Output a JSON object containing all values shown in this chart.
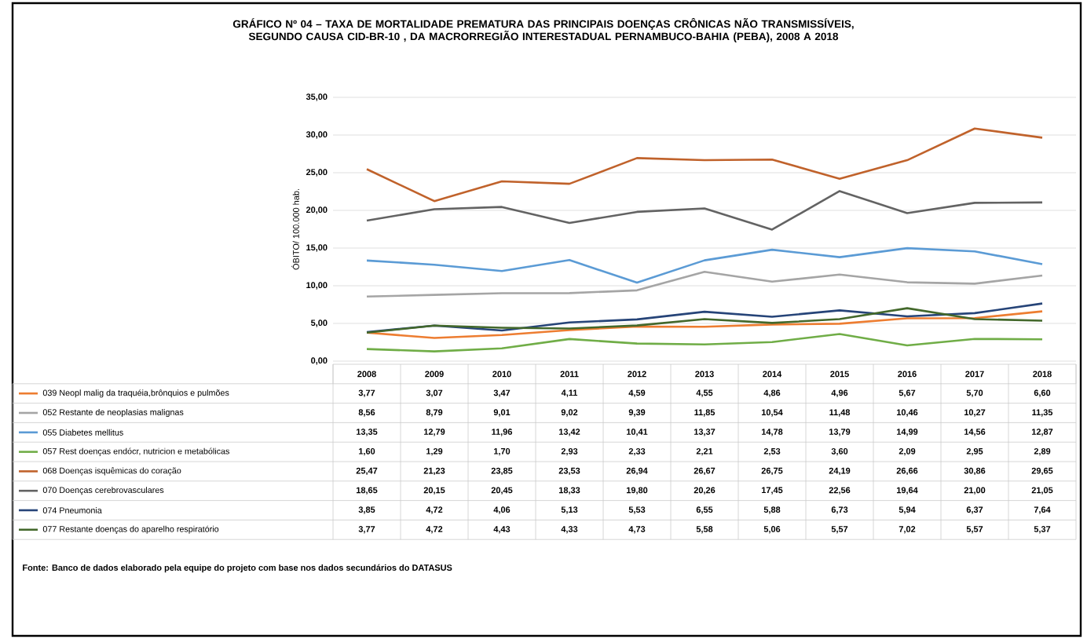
{
  "chart_data": {
    "type": "line",
    "title": "GRÁFICO Nº 04 – TAXA DE MORTALIDADE PREMATURA DAS PRINCIPAIS DOENÇAS CRÔNICAS NÃO TRANSMISSÍVEIS, SEGUNDO CAUSA CID-BR-10 , DA MACRORREGIÃO INTERESTADUAL PERNAMBUCO-BAHIA (PEBA), 2008 A 2018",
    "ylabel": "ÓBITO/ 100.000 hab.",
    "categories": [
      "2008",
      "2009",
      "2010",
      "2011",
      "2012",
      "2013",
      "2014",
      "2015",
      "2016",
      "2017",
      "2018"
    ],
    "ylim": [
      0,
      35
    ],
    "yticks": [
      {
        "value": 0,
        "label": "0,00"
      },
      {
        "value": 5,
        "label": "5,00"
      },
      {
        "value": 10,
        "label": "10,00"
      },
      {
        "value": 15,
        "label": "15,00"
      },
      {
        "value": 20,
        "label": "20,00"
      },
      {
        "value": 25,
        "label": "25,00"
      },
      {
        "value": 30,
        "label": "30,00"
      },
      {
        "value": 35,
        "label": "35,00"
      }
    ],
    "grid": "y",
    "legend": "bottom",
    "marker": "none",
    "line_style": "solid",
    "annotations": [
      "Fonte: Banco de dados elaborado pela equipe do projeto com base nos dados secundários do DATASUS"
    ],
    "series": [
      {
        "name": "039 Neopl malig da traquéia,brônquios e pulmões",
        "color": "#ed7d31",
        "values": [
          3.77,
          3.07,
          3.47,
          4.11,
          4.59,
          4.55,
          4.86,
          4.96,
          5.67,
          5.7,
          6.6
        ],
        "value_labels": [
          "3,77",
          "3,07",
          "3,47",
          "4,11",
          "4,59",
          "4,55",
          "4,86",
          "4,96",
          "5,67",
          "5,70",
          "6,60"
        ]
      },
      {
        "name": "052 Restante de neoplasias malignas",
        "color": "#a5a5a5",
        "values": [
          8.56,
          8.79,
          9.01,
          9.02,
          9.39,
          11.85,
          10.54,
          11.48,
          10.46,
          10.27,
          11.35
        ],
        "value_labels": [
          "8,56",
          "8,79",
          "9,01",
          "9,02",
          "9,39",
          "11,85",
          "10,54",
          "11,48",
          "10,46",
          "10,27",
          "11,35"
        ]
      },
      {
        "name": "055 Diabetes mellitus",
        "color": "#5b9bd5",
        "values": [
          13.35,
          12.79,
          11.96,
          13.42,
          10.41,
          13.37,
          14.78,
          13.79,
          14.99,
          14.56,
          12.87
        ],
        "value_labels": [
          "13,35",
          "12,79",
          "11,96",
          "13,42",
          "10,41",
          "13,37",
          "14,78",
          "13,79",
          "14,99",
          "14,56",
          "12,87"
        ]
      },
      {
        "name": "057 Rest doenças endócr, nutricion e metabólicas",
        "color": "#70ad47",
        "values": [
          1.6,
          1.29,
          1.7,
          2.93,
          2.33,
          2.21,
          2.53,
          3.6,
          2.09,
          2.95,
          2.89
        ],
        "value_labels": [
          "1,60",
          "1,29",
          "1,70",
          "2,93",
          "2,33",
          "2,21",
          "2,53",
          "3,60",
          "2,09",
          "2,95",
          "2,89"
        ]
      },
      {
        "name": "068 Doenças isquêmicas do coração",
        "color": "#c0622b",
        "values": [
          25.47,
          21.23,
          23.85,
          23.53,
          26.94,
          26.67,
          26.75,
          24.19,
          26.66,
          30.86,
          29.65
        ],
        "value_labels": [
          "25,47",
          "21,23",
          "23,85",
          "23,53",
          "26,94",
          "26,67",
          "26,75",
          "24,19",
          "26,66",
          "30,86",
          "29,65"
        ]
      },
      {
        "name": "070 Doenças cerebrovasculares",
        "color": "#636363",
        "values": [
          18.65,
          20.15,
          20.45,
          18.33,
          19.8,
          20.26,
          17.45,
          22.56,
          19.64,
          21.0,
          21.05
        ],
        "value_labels": [
          "18,65",
          "20,15",
          "20,45",
          "18,33",
          "19,80",
          "20,26",
          "17,45",
          "22,56",
          "19,64",
          "21,00",
          "21,05"
        ]
      },
      {
        "name": "074 Pneumonia",
        "color": "#264478",
        "values": [
          3.85,
          4.72,
          4.06,
          5.13,
          5.53,
          6.55,
          5.88,
          6.73,
          5.94,
          6.37,
          7.64
        ],
        "value_labels": [
          "3,85",
          "4,72",
          "4,06",
          "5,13",
          "5,53",
          "6,55",
          "5,88",
          "6,73",
          "5,94",
          "6,37",
          "7,64"
        ]
      },
      {
        "name": "077 Restante doenças do aparelho respiratório",
        "color": "#43682b",
        "values": [
          3.77,
          4.72,
          4.43,
          4.33,
          4.73,
          5.58,
          5.06,
          5.57,
          7.02,
          5.57,
          5.37
        ],
        "value_labels": [
          "3,77",
          "4,72",
          "4,43",
          "4,33",
          "4,73",
          "5,58",
          "5,06",
          "5,57",
          "7,02",
          "5,57",
          "5,37"
        ]
      }
    ]
  }
}
